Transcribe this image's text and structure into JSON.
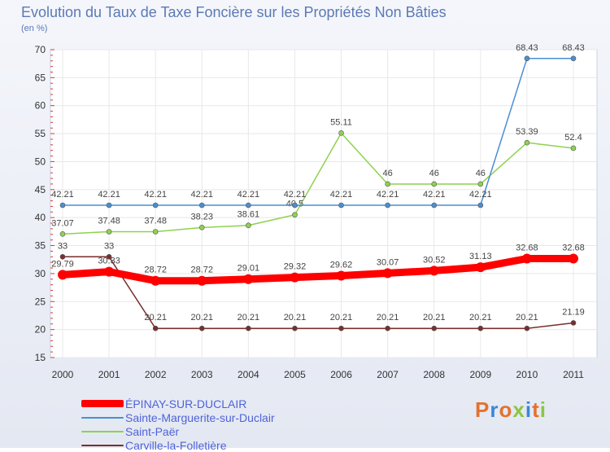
{
  "chart_data": {
    "type": "line",
    "title": "Evolution du Taux de Taxe Foncière sur les Propriétés Non Bâties",
    "xlabel": "",
    "ylabel": "(en %)",
    "ylim": [
      15,
      70
    ],
    "yticks": [
      15,
      20,
      25,
      30,
      35,
      40,
      45,
      50,
      55,
      60,
      65,
      70
    ],
    "x": [
      "2000",
      "2001",
      "2002",
      "2003",
      "2004",
      "2005",
      "2006",
      "2007",
      "2008",
      "2009",
      "2010",
      "2011"
    ],
    "series": [
      {
        "name": "Carville-la-Folletière",
        "color": "#7a2e2e",
        "values": [
          33,
          33,
          20.21,
          20.21,
          20.21,
          20.21,
          20.21,
          20.21,
          20.21,
          20.21,
          20.21,
          21.19
        ],
        "labels": [
          "33",
          "33",
          "20.21",
          "20.21",
          "20.21",
          "20.21",
          "20.21",
          "20.21",
          "20.21",
          "20.21",
          "20.21",
          "21.19"
        ]
      },
      {
        "name": "Saint-Paër",
        "color": "#8fd14f",
        "values": [
          37.07,
          37.48,
          37.48,
          38.23,
          38.61,
          40.5,
          55.11,
          46,
          46,
          46,
          53.39,
          52.4
        ],
        "labels": [
          "37.07",
          "37.48",
          "37.48",
          "38.23",
          "38.61",
          "40.5",
          "55.11",
          "46",
          "46",
          "46",
          "53.39",
          "52.4"
        ]
      },
      {
        "name": "Sainte-Marguerite-sur-Duclair",
        "color": "#4a8fd1",
        "values": [
          42.21,
          42.21,
          42.21,
          42.21,
          42.21,
          42.21,
          42.21,
          42.21,
          42.21,
          42.21,
          68.43,
          68.43
        ],
        "labels": [
          "42.21",
          "42.21",
          "42.21",
          "42.21",
          "42.21",
          "42.21",
          "42.21",
          "42.21",
          "42.21",
          "42.21",
          "68.43",
          "68.43"
        ]
      },
      {
        "name": "ÉPINAY-SUR-DUCLAIR",
        "color": "#ff0000",
        "emphasis": true,
        "values": [
          29.79,
          30.33,
          28.72,
          28.72,
          29.01,
          29.32,
          29.62,
          30.07,
          30.52,
          31.13,
          32.68,
          32.68
        ],
        "labels": [
          "29.79",
          "30.33",
          "28.72",
          "28.72",
          "29.01",
          "29.32",
          "29.62",
          "30.07",
          "30.52",
          "31.13",
          "32.68",
          "32.68"
        ]
      }
    ],
    "legend_order": [
      "ÉPINAY-SUR-DUCLAIR",
      "Sainte-Marguerite-sur-Duclair",
      "Saint-Paër",
      "Carville-la-Folletière"
    ],
    "legend_position": "bottom-left"
  }
}
